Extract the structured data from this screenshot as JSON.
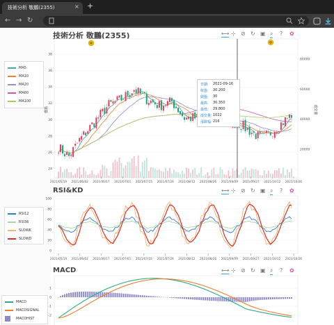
{
  "browser": {
    "tab_title": "技術分析 敬鵬(2355)",
    "tab_close": "×",
    "new_tab": "+",
    "back_icon": "←",
    "forward_icon": "→",
    "reload_icon": "↻"
  },
  "panels": {
    "main": {
      "title": "技術分析 敬鵬(2355)",
      "legend": [
        {
          "label": "MA5",
          "color": "#3cae9b"
        },
        {
          "label": "MA10",
          "color": "#f07f2b"
        },
        {
          "label": "MA20",
          "color": "#8f8fcb"
        },
        {
          "label": "MA60",
          "color": "#cc55b0"
        },
        {
          "label": "MA100",
          "color": "#a6cf63"
        }
      ],
      "y_ticks": [
        "38",
        "36",
        "34",
        "32",
        "30",
        "28",
        "26",
        "24"
      ],
      "y_label": "價格",
      "y2_ticks": [
        "80000",
        "60000",
        "40000",
        "20000"
      ],
      "y2_label": "成交量",
      "x_ticks": [
        "2021/05/19",
        "2021/06/02",
        "2021/06/17",
        "2021/07/01",
        "2021/07/15",
        "2021/07/29",
        "2021/08/12",
        "2021/08/26",
        "2021/09/09",
        "2021/09/27",
        "2021/10/12",
        "2021/10/26"
      ],
      "badges": [
        "除",
        "除"
      ],
      "tooltip": [
        {
          "key": "日期:",
          "value": "2021-09-16"
        },
        {
          "key": "收盤:",
          "value": "30.200"
        },
        {
          "key": "開盤:",
          "value": "30"
        },
        {
          "key": "最高:",
          "value": "30.350"
        },
        {
          "key": "最低:",
          "value": "29.800"
        },
        {
          "key": "成交量:",
          "value": "1022"
        },
        {
          "key": "漲跌幅:",
          "value": "216"
        }
      ]
    },
    "rsi": {
      "title": "RSI&KD",
      "legend": [
        {
          "label": "RSI12",
          "color": "#2e7bd6"
        },
        {
          "label": "RSI36",
          "color": "#a8d8a0"
        },
        {
          "label": "SLOWK",
          "color": "#f2b272"
        },
        {
          "label": "SLOWD",
          "color": "#d92e23"
        }
      ],
      "y_ticks": [
        "100",
        "80",
        "60",
        "40",
        "20",
        "0"
      ],
      "x_ticks": [
        "2021/05/19",
        "2021/06/02",
        "2021/06/17",
        "2021/07/01",
        "2021/07/15",
        "2021/07/29",
        "2021/08/12",
        "2021/08/26",
        "2021/09/09",
        "2021/09/27",
        "2021/10/12",
        "2021/10/26"
      ]
    },
    "macd": {
      "title": "MACD",
      "legend": [
        {
          "label": "MACD",
          "color": "#2aa889"
        },
        {
          "label": "MACDSIGNAL",
          "color": "#ef7d2a"
        },
        {
          "label": "MACDHIST",
          "color": "#8b88c6",
          "box": true
        }
      ],
      "y_ticks": [
        "1",
        "0",
        "-1",
        "-2"
      ]
    }
  },
  "toolbar_icons": [
    "pan-icon",
    "box-zoom-icon",
    "wheel-zoom-icon",
    "reset-icon",
    "save-icon",
    "hover-icon",
    "help-icon",
    "bokeh-logo-icon"
  ]
}
